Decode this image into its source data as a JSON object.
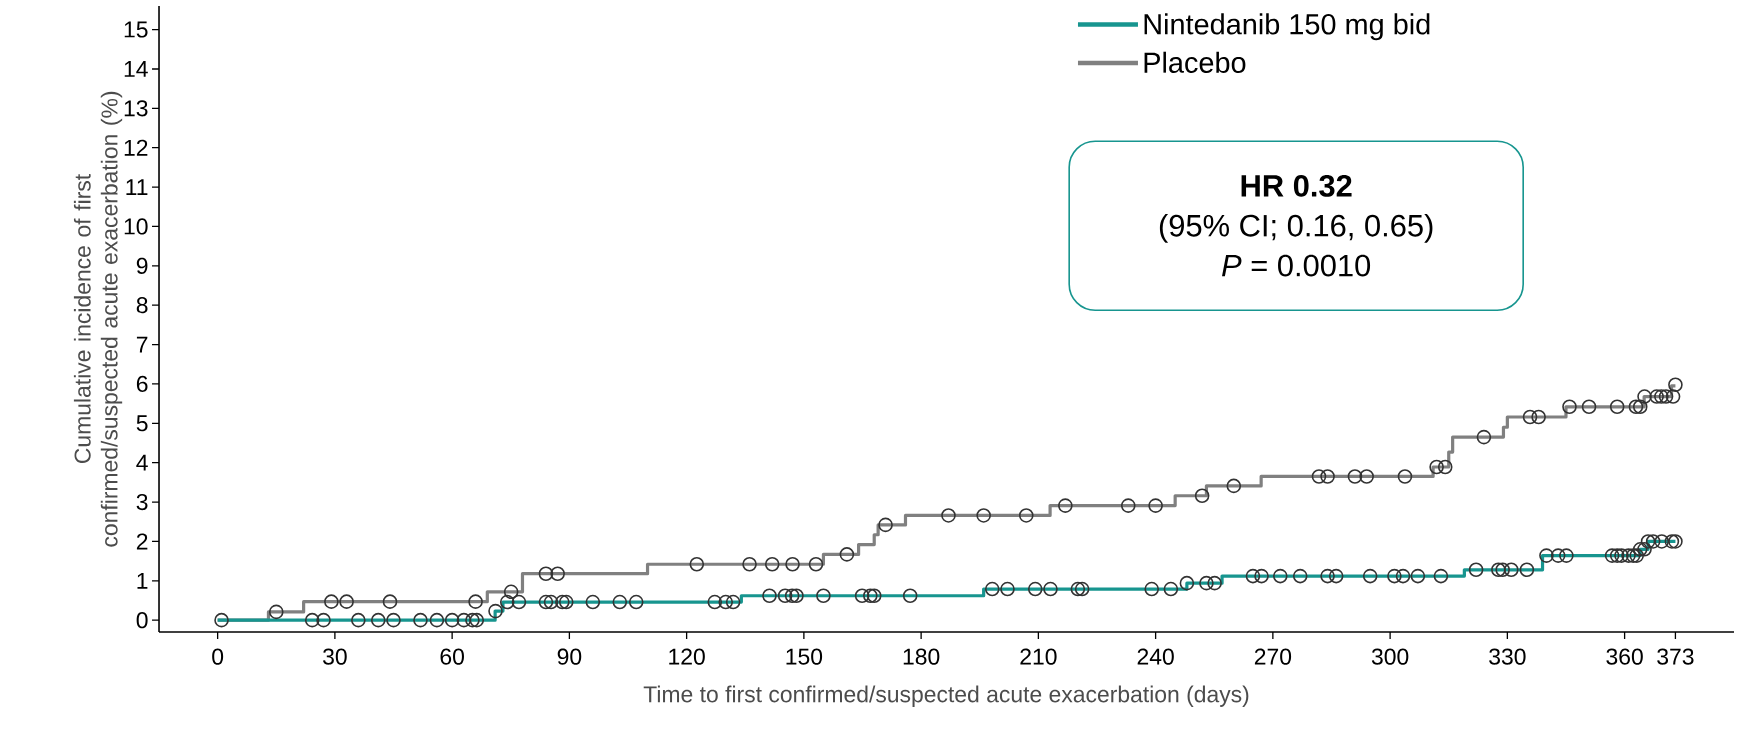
{
  "chart_data": {
    "type": "step",
    "xlabel": "Time to first confirmed/suspected acute exacerbation (days)",
    "ylabel": "Cumulative incidence of first confirmed/suspected acute exacerbation (%)",
    "xlim": [
      -15,
      388
    ],
    "ylim": [
      -0.3,
      15.6
    ],
    "xticks": [
      0,
      30,
      60,
      90,
      120,
      150,
      180,
      210,
      240,
      270,
      300,
      330,
      360,
      373
    ],
    "yticks": [
      0,
      1,
      2,
      3,
      4,
      5,
      6,
      7,
      8,
      9,
      10,
      11,
      12,
      13,
      14,
      15
    ],
    "legend": "top",
    "grid": false,
    "annotations": [
      "HR 0.32",
      "(95% CI; 0.16, 0.65)",
      "*P* = 0.0010"
    ],
    "series": [
      {
        "name": "Nintedanib 150 mg bid",
        "type": "step",
        "color": "#17958f",
        "marker": "none",
        "x": [
          0,
          71,
          73,
          134,
          196,
          248,
          257,
          319,
          339,
          364,
          366,
          373
        ],
        "values": [
          0,
          0.23,
          0.46,
          0.62,
          0.79,
          0.94,
          1.12,
          1.28,
          1.64,
          1.8,
          2.0,
          2.0
        ]
      },
      {
        "name": "Placebo",
        "type": "step",
        "color": "#808080",
        "marker": "none",
        "x": [
          0,
          13,
          22,
          69,
          78,
          110,
          155,
          164,
          168,
          169,
          176,
          213,
          245,
          253,
          267,
          311,
          315,
          316,
          329,
          330,
          345,
          365,
          372,
          373
        ],
        "values": [
          0,
          0.21,
          0.47,
          0.72,
          1.18,
          1.42,
          1.67,
          1.92,
          2.17,
          2.42,
          2.66,
          2.91,
          3.16,
          3.41,
          3.65,
          3.89,
          4.27,
          4.65,
          4.9,
          5.16,
          5.42,
          5.68,
          5.95,
          5.95
        ]
      },
      {
        "type": "scatter",
        "color": "#333333",
        "marker": "circle",
        "x": [
          1,
          24.2,
          27.1,
          36,
          41.1,
          45,
          51.9,
          56.1,
          60,
          63,
          65.2,
          66.3,
          71.1,
          74.1,
          77.1,
          84,
          85.3,
          88.2,
          89.2,
          96,
          102.9,
          107.1,
          127.2,
          130,
          131.9,
          141.2,
          145.2,
          147,
          148.1,
          155,
          164.9,
          167,
          168,
          177.2,
          198.2,
          202.1,
          209.2,
          213.1,
          220.1,
          221.2,
          239,
          243.9,
          248,
          253,
          255.1,
          264.9,
          267.1,
          271.9,
          277,
          284,
          286.2,
          294.9,
          301.1,
          303.3,
          307.1,
          313,
          322,
          327.7,
          328.8,
          331,
          335,
          340,
          343,
          345.1,
          356.8,
          358.1,
          359.2,
          361,
          362.2,
          363.1,
          364,
          365.1,
          366,
          367.3,
          369.5,
          372.1,
          373
        ],
        "values": [
          0,
          0,
          0,
          0,
          0,
          0,
          0,
          0,
          0,
          0,
          0,
          0,
          0.23,
          0.46,
          0.46,
          0.46,
          0.46,
          0.46,
          0.46,
          0.46,
          0.46,
          0.46,
          0.46,
          0.46,
          0.46,
          0.62,
          0.62,
          0.62,
          0.62,
          0.62,
          0.62,
          0.62,
          0.62,
          0.62,
          0.79,
          0.79,
          0.79,
          0.79,
          0.79,
          0.79,
          0.79,
          0.79,
          0.94,
          0.94,
          0.94,
          1.12,
          1.12,
          1.12,
          1.12,
          1.12,
          1.12,
          1.12,
          1.12,
          1.12,
          1.12,
          1.12,
          1.28,
          1.28,
          1.28,
          1.28,
          1.28,
          1.64,
          1.64,
          1.64,
          1.64,
          1.64,
          1.64,
          1.64,
          1.64,
          1.64,
          1.8,
          1.8,
          2.0,
          2.0,
          2.0,
          2.0,
          2.0
        ]
      },
      {
        "type": "scatter",
        "color": "#333333",
        "marker": "circle",
        "x": [
          15,
          29.1,
          33,
          44.1,
          66,
          75.1,
          84,
          87,
          122.6,
          136.1,
          141.9,
          147.1,
          153.1,
          161,
          170.9,
          187,
          196,
          206.9,
          216.9,
          233,
          240,
          251.9,
          260,
          281.8,
          284,
          291,
          294,
          303.8,
          311.9,
          314.1,
          324,
          335.8,
          338,
          345.9,
          350.9,
          358.1,
          362.9,
          364,
          365.1,
          368.2,
          369.4,
          370.6,
          372.4,
          373
        ],
        "values": [
          0.21,
          0.47,
          0.47,
          0.47,
          0.47,
          0.72,
          1.18,
          1.18,
          1.42,
          1.42,
          1.42,
          1.42,
          1.42,
          1.67,
          2.42,
          2.66,
          2.66,
          2.66,
          2.91,
          2.91,
          2.91,
          3.16,
          3.41,
          3.65,
          3.65,
          3.65,
          3.65,
          3.65,
          3.89,
          3.89,
          4.65,
          5.16,
          5.16,
          5.42,
          5.42,
          5.42,
          5.42,
          5.42,
          5.68,
          5.68,
          5.68,
          5.68,
          5.68,
          5.98
        ]
      }
    ]
  }
}
